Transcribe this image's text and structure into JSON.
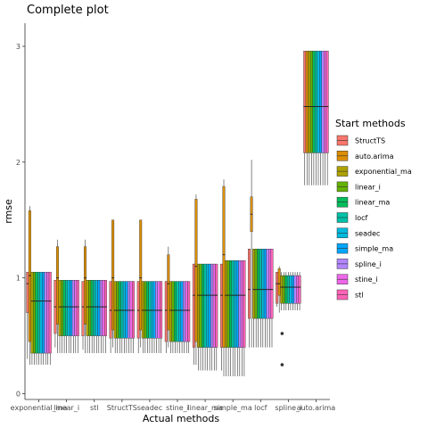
{
  "chart_data": {
    "type": "box",
    "title": "Complete plot",
    "xlabel": "Actual methods",
    "ylabel": "rmse",
    "ylim": [
      -0.05,
      3.2
    ],
    "yticks": [
      0,
      1,
      2,
      3
    ],
    "grid": false,
    "legend_position": "right",
    "legend_title": "Start methods",
    "categories": [
      "exponential_ma",
      "linear_i",
      "stl",
      "StructTS",
      "seadec",
      "stine_i",
      "linear_ma",
      "simple_ma",
      "locf",
      "spline_i",
      "auto.arima"
    ],
    "series": [
      {
        "name": "StructTS",
        "color": "#F8766D",
        "boxes": [
          [
            0.3,
            0.7,
            0.95,
            1.05,
            1.05
          ],
          [
            0.4,
            0.52,
            0.75,
            0.98,
            0.98
          ],
          [
            0.38,
            0.5,
            0.75,
            0.97,
            0.97
          ],
          [
            0.35,
            0.48,
            0.72,
            0.97,
            0.97
          ],
          [
            0.35,
            0.48,
            0.72,
            0.97,
            0.97
          ],
          [
            0.35,
            0.45,
            0.72,
            0.97,
            0.97
          ],
          [
            0.25,
            0.4,
            0.85,
            1.12,
            1.12
          ],
          [
            0.2,
            0.4,
            0.85,
            1.12,
            1.12
          ],
          [
            0.4,
            0.65,
            0.9,
            1.25,
            1.25
          ],
          [
            0.75,
            0.78,
            0.95,
            1.05,
            1.05
          ],
          [
            1.8,
            2.08,
            2.48,
            2.96,
            2.96
          ]
        ]
      },
      {
        "name": "auto.arima",
        "color": "#DB8E00",
        "boxes": [
          [
            0.25,
            0.45,
            1.02,
            1.58,
            1.62
          ],
          [
            0.35,
            0.6,
            1.0,
            1.27,
            1.33
          ],
          [
            0.35,
            0.6,
            1.0,
            1.27,
            1.33
          ],
          [
            0.4,
            0.55,
            1.0,
            1.5,
            1.5
          ],
          [
            0.4,
            0.55,
            1.0,
            1.5,
            1.5
          ],
          [
            0.4,
            0.55,
            0.95,
            1.2,
            1.27
          ],
          [
            0.25,
            0.45,
            1.1,
            1.68,
            1.72
          ],
          [
            0.15,
            0.4,
            1.2,
            1.79,
            1.85
          ],
          [
            0.4,
            1.4,
            1.55,
            1.7,
            2.02
          ],
          [
            0.7,
            0.85,
            0.95,
            1.08,
            1.1
          ],
          [
            1.8,
            2.08,
            2.48,
            2.96,
            2.96
          ]
        ]
      },
      {
        "name": "exponential_ma",
        "color": "#AEA200",
        "boxes": [
          [
            0.25,
            0.35,
            0.8,
            1.05,
            1.05
          ],
          [
            0.35,
            0.5,
            0.75,
            0.98,
            0.98
          ],
          [
            0.35,
            0.5,
            0.75,
            0.98,
            0.98
          ],
          [
            0.35,
            0.48,
            0.72,
            0.97,
            0.97
          ],
          [
            0.35,
            0.48,
            0.72,
            0.97,
            0.97
          ],
          [
            0.35,
            0.45,
            0.72,
            0.97,
            0.97
          ],
          [
            0.2,
            0.4,
            0.85,
            1.12,
            1.12
          ],
          [
            0.15,
            0.4,
            0.85,
            1.15,
            1.15
          ],
          [
            0.4,
            0.65,
            0.9,
            1.25,
            1.25
          ],
          [
            0.72,
            0.78,
            0.92,
            1.02,
            1.05
          ],
          [
            1.8,
            2.08,
            2.48,
            2.96,
            2.96
          ]
        ]
      },
      {
        "name": "linear_i",
        "color": "#64B200",
        "boxes": [
          [
            0.25,
            0.35,
            0.8,
            1.05,
            1.05
          ],
          [
            0.35,
            0.5,
            0.75,
            0.98,
            0.98
          ],
          [
            0.35,
            0.5,
            0.75,
            0.98,
            0.98
          ],
          [
            0.35,
            0.48,
            0.72,
            0.97,
            0.97
          ],
          [
            0.35,
            0.48,
            0.72,
            0.97,
            0.97
          ],
          [
            0.35,
            0.45,
            0.72,
            0.97,
            0.97
          ],
          [
            0.2,
            0.4,
            0.85,
            1.12,
            1.12
          ],
          [
            0.15,
            0.4,
            0.85,
            1.15,
            1.15
          ],
          [
            0.4,
            0.65,
            0.9,
            1.25,
            1.25
          ],
          [
            0.72,
            0.78,
            0.92,
            1.02,
            1.05
          ],
          [
            1.8,
            2.08,
            2.48,
            2.96,
            2.96
          ]
        ]
      },
      {
        "name": "linear_ma",
        "color": "#00BD5C",
        "boxes": [
          [
            0.25,
            0.35,
            0.8,
            1.05,
            1.05
          ],
          [
            0.35,
            0.5,
            0.75,
            0.98,
            0.98
          ],
          [
            0.35,
            0.5,
            0.75,
            0.98,
            0.98
          ],
          [
            0.35,
            0.48,
            0.72,
            0.97,
            0.97
          ],
          [
            0.35,
            0.48,
            0.72,
            0.97,
            0.97
          ],
          [
            0.35,
            0.45,
            0.72,
            0.97,
            0.97
          ],
          [
            0.2,
            0.4,
            0.85,
            1.12,
            1.12
          ],
          [
            0.15,
            0.4,
            0.85,
            1.15,
            1.15
          ],
          [
            0.4,
            0.65,
            0.9,
            1.25,
            1.25
          ],
          [
            0.72,
            0.78,
            0.92,
            1.02,
            1.05
          ],
          [
            1.8,
            2.08,
            2.48,
            2.96,
            2.96
          ]
        ]
      },
      {
        "name": "locf",
        "color": "#00C1A7",
        "boxes": [
          [
            0.25,
            0.35,
            0.8,
            1.05,
            1.05
          ],
          [
            0.35,
            0.5,
            0.75,
            0.98,
            0.98
          ],
          [
            0.35,
            0.5,
            0.75,
            0.98,
            0.98
          ],
          [
            0.35,
            0.48,
            0.72,
            0.97,
            0.97
          ],
          [
            0.35,
            0.48,
            0.72,
            0.97,
            0.97
          ],
          [
            0.35,
            0.45,
            0.72,
            0.97,
            0.97
          ],
          [
            0.2,
            0.4,
            0.85,
            1.12,
            1.12
          ],
          [
            0.15,
            0.4,
            0.85,
            1.15,
            1.15
          ],
          [
            0.4,
            0.65,
            0.9,
            1.25,
            1.25
          ],
          [
            0.72,
            0.78,
            0.92,
            1.02,
            1.05
          ],
          [
            1.8,
            2.08,
            2.48,
            2.96,
            2.96
          ]
        ]
      },
      {
        "name": "seadec",
        "color": "#00BADE",
        "boxes": [
          [
            0.25,
            0.35,
            0.8,
            1.05,
            1.05
          ],
          [
            0.35,
            0.5,
            0.75,
            0.98,
            0.98
          ],
          [
            0.35,
            0.5,
            0.75,
            0.98,
            0.98
          ],
          [
            0.35,
            0.48,
            0.72,
            0.97,
            0.97
          ],
          [
            0.35,
            0.48,
            0.72,
            0.97,
            0.97
          ],
          [
            0.35,
            0.45,
            0.72,
            0.97,
            0.97
          ],
          [
            0.2,
            0.4,
            0.85,
            1.12,
            1.12
          ],
          [
            0.15,
            0.4,
            0.85,
            1.15,
            1.15
          ],
          [
            0.4,
            0.65,
            0.9,
            1.25,
            1.25
          ],
          [
            0.72,
            0.78,
            0.92,
            1.02,
            1.05
          ],
          [
            1.8,
            2.08,
            2.48,
            2.96,
            2.96
          ]
        ]
      },
      {
        "name": "simple_ma",
        "color": "#00A6FF",
        "boxes": [
          [
            0.25,
            0.35,
            0.8,
            1.05,
            1.05
          ],
          [
            0.35,
            0.5,
            0.75,
            0.98,
            0.98
          ],
          [
            0.35,
            0.5,
            0.75,
            0.98,
            0.98
          ],
          [
            0.35,
            0.48,
            0.72,
            0.97,
            0.97
          ],
          [
            0.35,
            0.48,
            0.72,
            0.97,
            0.97
          ],
          [
            0.35,
            0.45,
            0.72,
            0.97,
            0.97
          ],
          [
            0.2,
            0.4,
            0.85,
            1.12,
            1.12
          ],
          [
            0.15,
            0.4,
            0.85,
            1.15,
            1.15
          ],
          [
            0.4,
            0.65,
            0.9,
            1.25,
            1.25
          ],
          [
            0.72,
            0.78,
            0.92,
            1.02,
            1.05
          ],
          [
            1.8,
            2.08,
            2.48,
            2.96,
            2.96
          ]
        ]
      },
      {
        "name": "spline_i",
        "color": "#B385FF",
        "boxes": [
          [
            0.25,
            0.35,
            0.8,
            1.05,
            1.05
          ],
          [
            0.35,
            0.5,
            0.75,
            0.98,
            0.98
          ],
          [
            0.35,
            0.5,
            0.75,
            0.98,
            0.98
          ],
          [
            0.35,
            0.48,
            0.72,
            0.97,
            0.97
          ],
          [
            0.35,
            0.48,
            0.72,
            0.97,
            0.97
          ],
          [
            0.35,
            0.45,
            0.72,
            0.97,
            0.97
          ],
          [
            0.2,
            0.4,
            0.85,
            1.12,
            1.12
          ],
          [
            0.15,
            0.4,
            0.85,
            1.15,
            1.15
          ],
          [
            0.4,
            0.65,
            0.9,
            1.25,
            1.25
          ],
          [
            0.72,
            0.78,
            0.92,
            1.02,
            1.05
          ],
          [
            1.8,
            2.08,
            2.48,
            2.96,
            2.96
          ]
        ]
      },
      {
        "name": "stine_i",
        "color": "#EF67EB",
        "boxes": [
          [
            0.25,
            0.35,
            0.8,
            1.05,
            1.05
          ],
          [
            0.35,
            0.5,
            0.75,
            0.98,
            0.98
          ],
          [
            0.35,
            0.5,
            0.75,
            0.98,
            0.98
          ],
          [
            0.35,
            0.48,
            0.72,
            0.97,
            0.97
          ],
          [
            0.35,
            0.48,
            0.72,
            0.97,
            0.97
          ],
          [
            0.35,
            0.45,
            0.72,
            0.97,
            0.97
          ],
          [
            0.2,
            0.4,
            0.85,
            1.12,
            1.12
          ],
          [
            0.15,
            0.4,
            0.85,
            1.15,
            1.15
          ],
          [
            0.4,
            0.65,
            0.9,
            1.25,
            1.25
          ],
          [
            0.72,
            0.78,
            0.92,
            1.02,
            1.05
          ],
          [
            1.8,
            2.08,
            2.48,
            2.96,
            2.96
          ]
        ]
      },
      {
        "name": "stl",
        "color": "#FF63B6",
        "boxes": [
          [
            0.25,
            0.35,
            0.8,
            1.05,
            1.05
          ],
          [
            0.35,
            0.5,
            0.75,
            0.98,
            0.98
          ],
          [
            0.35,
            0.5,
            0.75,
            0.98,
            0.98
          ],
          [
            0.35,
            0.48,
            0.72,
            0.97,
            0.97
          ],
          [
            0.35,
            0.48,
            0.72,
            0.97,
            0.97
          ],
          [
            0.35,
            0.45,
            0.72,
            0.97,
            0.97
          ],
          [
            0.2,
            0.4,
            0.85,
            1.12,
            1.12
          ],
          [
            0.15,
            0.4,
            0.85,
            1.15,
            1.15
          ],
          [
            0.4,
            0.65,
            0.9,
            1.25,
            1.25
          ],
          [
            0.72,
            0.78,
            0.92,
            1.02,
            1.05
          ],
          [
            1.8,
            2.08,
            2.48,
            2.96,
            2.96
          ]
        ]
      }
    ],
    "outliers": [
      {
        "category": "spline_i",
        "values": [
          0.52,
          0.25
        ]
      }
    ]
  }
}
